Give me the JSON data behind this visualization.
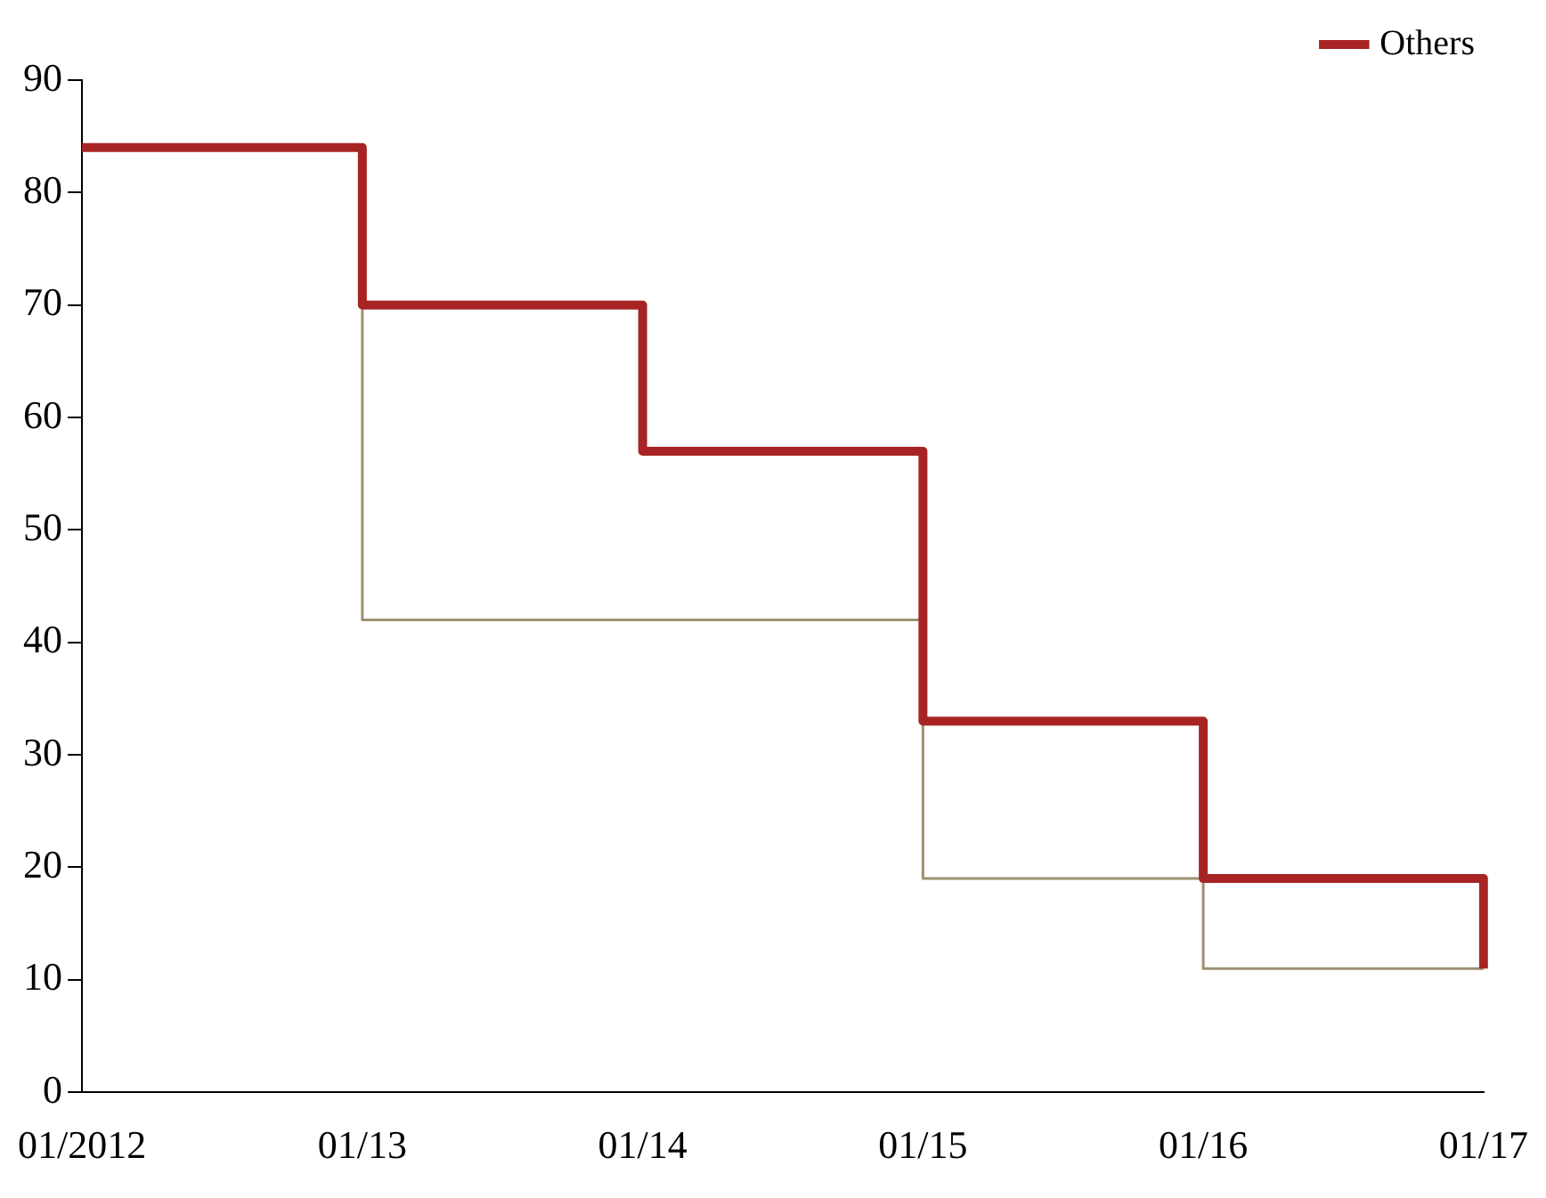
{
  "chart_data": {
    "type": "step",
    "categories": [
      "01/2012",
      "01/13",
      "01/14",
      "01/15",
      "01/16",
      "01/17"
    ],
    "series": [
      {
        "color": "#9e9172",
        "values": [
          84,
          42,
          42,
          19,
          11,
          11
        ]
      },
      {
        "name": "Others",
        "color": "#a82424",
        "values": [
          84,
          70,
          57,
          33,
          19,
          11
        ]
      }
    ],
    "ylim": [
      0,
      90
    ],
    "yticks": [
      0,
      10,
      20,
      30,
      40,
      50,
      60,
      70,
      80,
      90
    ],
    "grid": false,
    "legend": "top right"
  }
}
